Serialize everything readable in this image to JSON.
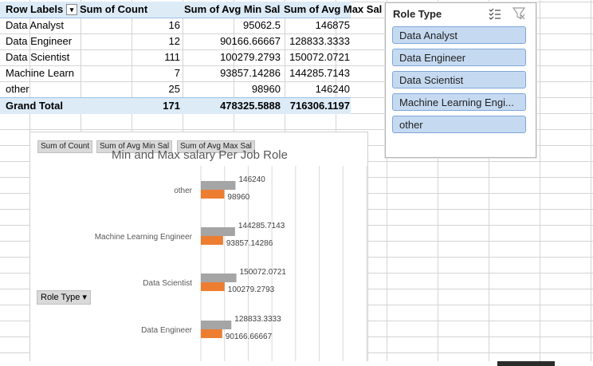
{
  "pivot": {
    "headers": {
      "row_labels": "Row Labels",
      "sum_count": "Sum of Count",
      "sum_min": "Sum of Avg Min Sal",
      "sum_max": "Sum of Avg Max Sal"
    },
    "rows": [
      {
        "label": "Data Analyst",
        "count": "16",
        "min": "95062.5",
        "max": "146875"
      },
      {
        "label": "Data Engineer",
        "count": "12",
        "min": "90166.66667",
        "max": "128833.3333"
      },
      {
        "label": "Data Scientist",
        "count": "111",
        "min": "100279.2793",
        "max": "150072.0721"
      },
      {
        "label": "Machine Learn",
        "count": "7",
        "min": "93857.14286",
        "max": "144285.7143"
      },
      {
        "label": "other",
        "count": "25",
        "min": "98960",
        "max": "146240"
      }
    ],
    "total": {
      "label": "Grand Total",
      "count": "171",
      "min": "478325.5888",
      "max": "716306.1197"
    }
  },
  "slicer": {
    "title": "Role Type",
    "items": [
      "Data Analyst",
      "Data Engineer",
      "Data Scientist",
      "Machine Learning Engi...",
      "other"
    ],
    "item_color": "#c5daf1"
  },
  "chart_buttons": {
    "count": "Sum of Count",
    "min": "Sum of Avg Min Sal",
    "max": "Sum of Avg Max Sal",
    "axis": "Role Type"
  },
  "chart_data": {
    "type": "bar",
    "orientation": "horizontal",
    "title": "Min and Max salary Per Job Role",
    "categories": [
      "other",
      "Machine Learning Engineer",
      "Data Scientist",
      "Data Engineer"
    ],
    "series": [
      {
        "values": [
          146240,
          144285.7143,
          150072.0721,
          128833.3333
        ],
        "labels": [
          "146240",
          "144285.7143",
          "150072.0721",
          "128833.3333"
        ],
        "color": "#a5a5a5"
      },
      {
        "values": [
          98960,
          93857.14286,
          100279.2793,
          90166.66667
        ],
        "labels": [
          "98960",
          "93857.14286",
          "100279.2793",
          "90166.66667"
        ],
        "color": "#ed7d31"
      }
    ],
    "xlim": [
      0,
      700000
    ],
    "grid": true
  }
}
